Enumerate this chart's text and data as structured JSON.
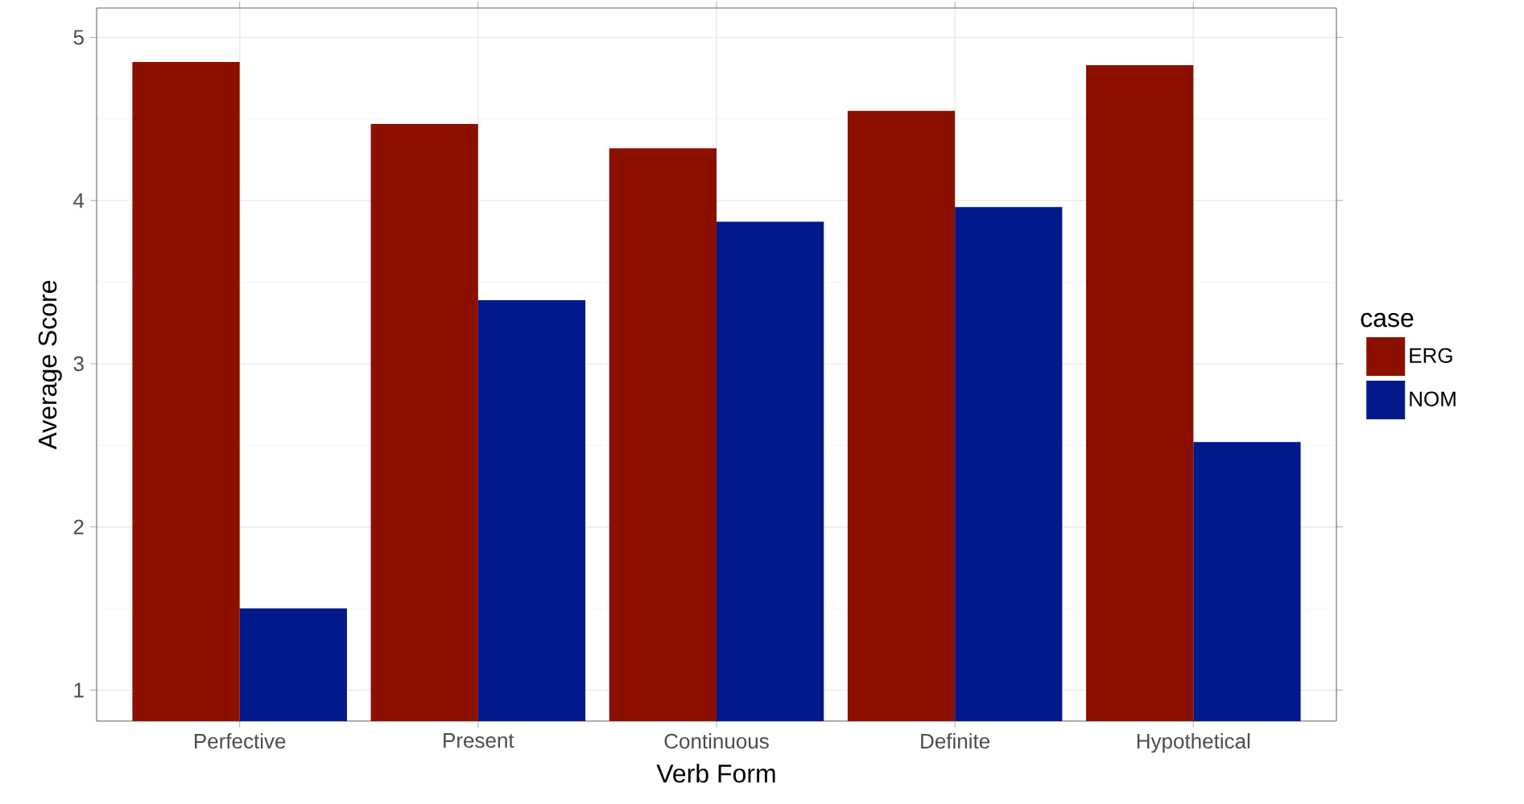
{
  "chart_data": {
    "type": "bar",
    "xlabel": "Verb Form",
    "ylabel": "Average Score",
    "legend_title": "case",
    "categories": [
      "Perfective",
      "Present",
      "Continuous",
      "Definite",
      "Hypothetical"
    ],
    "series": [
      {
        "name": "ERG",
        "color": "#8b1000",
        "values": [
          4.85,
          4.47,
          4.32,
          4.55,
          4.83
        ]
      },
      {
        "name": "NOM",
        "color": "#00198b",
        "values": [
          1.5,
          3.39,
          3.87,
          3.96,
          2.52
        ]
      }
    ],
    "ylim": [
      0.81,
      5.18
    ],
    "yticks": [
      1,
      2,
      3,
      4,
      5
    ],
    "grid": true,
    "legend": "right"
  }
}
